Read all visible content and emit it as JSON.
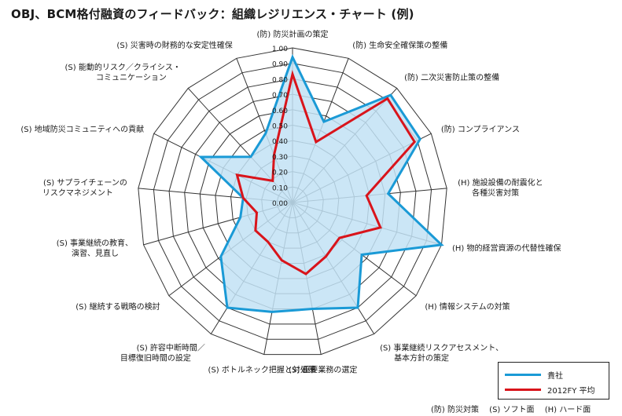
{
  "title": "OBJ、BCM格付融資のフィードバック：組織レジリエンス・チャート (例)",
  "chart_data": {
    "type": "radar",
    "title": "OBJ、BCM格付融資のフィードバック：組織レジリエンス・チャート (例)",
    "axes": [
      {
        "lines": [
          "(防) 防災計画の策定"
        ]
      },
      {
        "lines": [
          "(防) 生命安全確保策の整備"
        ]
      },
      {
        "lines": [
          "(防) 二次災害防止策の整備"
        ]
      },
      {
        "lines": [
          "(防) コンプライアンス"
        ]
      },
      {
        "lines": [
          "(H) 施設設備の耐震化と",
          "各種災害対策"
        ]
      },
      {
        "lines": [
          "(H) 物的経営資源の代替性確保"
        ]
      },
      {
        "lines": [
          "(H) 情報システムの対策"
        ]
      },
      {
        "lines": [
          "(S) 事業継続リスクアセスメント、",
          "基本方針の策定"
        ]
      },
      {
        "lines": [
          "(S) 重要業務の選定"
        ]
      },
      {
        "lines": [
          "(S) ボトルネック把握と対処策"
        ]
      },
      {
        "lines": [
          "(S) 許容中断時間／",
          "目標復旧時間の設定"
        ]
      },
      {
        "lines": [
          "(S) 継続する戦略の検討"
        ]
      },
      {
        "lines": [
          "(S) 事業継続の教育、",
          "演習、見直し"
        ]
      },
      {
        "lines": [
          "(S) サプライチェーンの",
          "リスクマネジメント"
        ]
      },
      {
        "lines": [
          "(S) 地域防災コミュニティへの貢献"
        ]
      },
      {
        "lines": [
          "(S) 能動的リスク／クライシス・",
          "コミュニケーション"
        ]
      },
      {
        "lines": [
          "(S) 災害時の財務的な安定性確保"
        ]
      }
    ],
    "ticks": [
      "0.00",
      "0.10",
      "0.20",
      "0.30",
      "0.40",
      "0.50",
      "0.60",
      "0.70",
      "0.80",
      "0.90",
      "1.00"
    ],
    "rlim": [
      0,
      1
    ],
    "series": [
      {
        "name": "貴社",
        "color": "#1a9ad6",
        "fill": "#c2e2f5",
        "values": [
          0.94,
          0.56,
          0.94,
          0.92,
          0.62,
          1.0,
          0.56,
          0.8,
          0.7,
          0.72,
          0.8,
          0.58,
          0.35,
          0.32,
          0.66,
          0.4,
          0.48
        ]
      },
      {
        "name": "2012FY 平均",
        "color": "#d9141b",
        "values": [
          0.83,
          0.42,
          0.91,
          0.88,
          0.48,
          0.59,
          0.38,
          0.41,
          0.47,
          0.38,
          0.3,
          0.3,
          0.24,
          0.32,
          0.4,
          0.19,
          0.33
        ]
      }
    ],
    "legend": "bottom-right"
  },
  "legend": [
    {
      "label": "貴社",
      "color": "#1a9ad6"
    },
    {
      "label": "2012FY 平均",
      "color": "#d9141b"
    }
  ],
  "footnote": [
    "(防) 防災対策",
    "(S) ソフト面",
    "(H) ハード面"
  ]
}
